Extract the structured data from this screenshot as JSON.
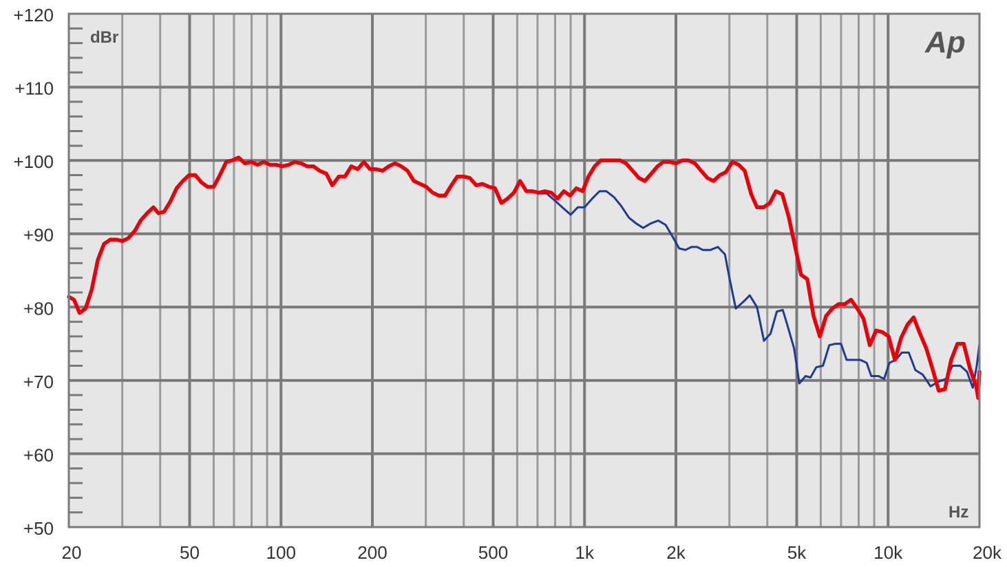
{
  "chart_data": {
    "type": "line",
    "title": "",
    "ylabel": "dBr",
    "xlabel": "Hz",
    "logo": "Ap",
    "x_scale": "log",
    "xlim": [
      20,
      20000
    ],
    "ylim": [
      50,
      120
    ],
    "grid": true,
    "y_ticks": [
      {
        "value": 120,
        "label": "+120"
      },
      {
        "value": 110,
        "label": "+110"
      },
      {
        "value": 100,
        "label": "+100"
      },
      {
        "value": 90,
        "label": "+90"
      },
      {
        "value": 80,
        "label": "+80"
      },
      {
        "value": 70,
        "label": "+70"
      },
      {
        "value": 60,
        "label": "+60"
      },
      {
        "value": 50,
        "label": "+50"
      }
    ],
    "x_ticks": [
      {
        "value": 20,
        "label": "20"
      },
      {
        "value": 50,
        "label": "50"
      },
      {
        "value": 100,
        "label": "100"
      },
      {
        "value": 200,
        "label": "200"
      },
      {
        "value": 500,
        "label": "500"
      },
      {
        "value": 1000,
        "label": "1k"
      },
      {
        "value": 2000,
        "label": "2k"
      },
      {
        "value": 5000,
        "label": "5k"
      },
      {
        "value": 10000,
        "label": "10k"
      },
      {
        "value": 20000,
        "label": "20k"
      }
    ],
    "series": [
      {
        "color": "#1f3a93",
        "points": [
          [
            700,
            95.5
          ],
          [
            750,
            95.5
          ],
          [
            800,
            94.5
          ],
          [
            850,
            93.5
          ],
          [
            900,
            92.6
          ],
          [
            950,
            93.6
          ],
          [
            1000,
            93.6
          ],
          [
            1060,
            94.8
          ],
          [
            1120,
            95.8
          ],
          [
            1180,
            95.8
          ],
          [
            1250,
            95.0
          ],
          [
            1320,
            93.8
          ],
          [
            1400,
            92.2
          ],
          [
            1480,
            91.4
          ],
          [
            1560,
            90.8
          ],
          [
            1650,
            91.4
          ],
          [
            1750,
            91.8
          ],
          [
            1850,
            91.2
          ],
          [
            1950,
            89.6
          ],
          [
            2050,
            88.0
          ],
          [
            2150,
            87.8
          ],
          [
            2250,
            88.2
          ],
          [
            2350,
            88.2
          ],
          [
            2450,
            87.8
          ],
          [
            2600,
            87.8
          ],
          [
            2750,
            88.2
          ],
          [
            2900,
            87.2
          ],
          [
            3000,
            84.0
          ],
          [
            3150,
            79.8
          ],
          [
            3350,
            80.8
          ],
          [
            3500,
            81.6
          ],
          [
            3700,
            80.0
          ],
          [
            3900,
            75.4
          ],
          [
            4100,
            76.4
          ],
          [
            4300,
            79.4
          ],
          [
            4500,
            79.6
          ],
          [
            4700,
            77.0
          ],
          [
            4900,
            74.4
          ],
          [
            5100,
            69.6
          ],
          [
            5350,
            70.6
          ],
          [
            5550,
            70.4
          ],
          [
            5800,
            71.8
          ],
          [
            6100,
            72.0
          ],
          [
            6400,
            74.8
          ],
          [
            6700,
            75.0
          ],
          [
            7000,
            75.0
          ],
          [
            7300,
            72.8
          ],
          [
            7700,
            72.8
          ],
          [
            8100,
            72.8
          ],
          [
            8500,
            72.4
          ],
          [
            8800,
            70.6
          ],
          [
            9300,
            70.6
          ],
          [
            9700,
            70.2
          ],
          [
            10100,
            72.4
          ],
          [
            10600,
            72.8
          ],
          [
            11100,
            73.8
          ],
          [
            11700,
            73.8
          ],
          [
            12300,
            71.4
          ],
          [
            13000,
            70.8
          ],
          [
            13800,
            69.2
          ],
          [
            14600,
            69.8
          ],
          [
            15500,
            70.2
          ],
          [
            16300,
            72.0
          ],
          [
            17300,
            72.0
          ],
          [
            18200,
            71.2
          ],
          [
            19000,
            69.0
          ],
          [
            19600,
            72.0
          ],
          [
            20000,
            75.0
          ]
        ]
      },
      {
        "color": "#e8000b",
        "points": [
          [
            20,
            81.4
          ],
          [
            20.8,
            81.0
          ],
          [
            21.7,
            79.2
          ],
          [
            22.7,
            79.8
          ],
          [
            23.8,
            82.4
          ],
          [
            24.9,
            86.4
          ],
          [
            26.1,
            88.6
          ],
          [
            27.4,
            89.2
          ],
          [
            28.7,
            89.2
          ],
          [
            30,
            89.0
          ],
          [
            31.4,
            89.4
          ],
          [
            33,
            90.4
          ],
          [
            34.5,
            91.8
          ],
          [
            36.2,
            92.8
          ],
          [
            38,
            93.6
          ],
          [
            39.5,
            92.8
          ],
          [
            41.2,
            93.0
          ],
          [
            43.2,
            94.4
          ],
          [
            45.3,
            96.2
          ],
          [
            47.5,
            97.2
          ],
          [
            49.8,
            98.0
          ],
          [
            52.2,
            98.0
          ],
          [
            54.7,
            97.0
          ],
          [
            57.3,
            96.4
          ],
          [
            60,
            96.4
          ],
          [
            62.9,
            98.0
          ],
          [
            66,
            99.8
          ],
          [
            69,
            100.0
          ],
          [
            72.5,
            100.4
          ],
          [
            76,
            99.6
          ],
          [
            79.8,
            99.8
          ],
          [
            83.7,
            99.4
          ],
          [
            87.8,
            99.8
          ],
          [
            92,
            99.4
          ],
          [
            96.5,
            99.4
          ],
          [
            101,
            99.2
          ],
          [
            106,
            99.4
          ],
          [
            111,
            99.8
          ],
          [
            116.5,
            99.6
          ],
          [
            122,
            99.2
          ],
          [
            128,
            99.2
          ],
          [
            134,
            98.6
          ],
          [
            141,
            98.2
          ],
          [
            147.5,
            96.6
          ],
          [
            155,
            97.8
          ],
          [
            162.5,
            97.8
          ],
          [
            170.5,
            99.2
          ],
          [
            179,
            98.8
          ],
          [
            187.5,
            99.8
          ],
          [
            196.5,
            98.8
          ],
          [
            206,
            98.8
          ],
          [
            216,
            98.6
          ],
          [
            226.5,
            99.2
          ],
          [
            237.5,
            99.6
          ],
          [
            249,
            99.2
          ],
          [
            261,
            98.6
          ],
          [
            274,
            97.2
          ],
          [
            287,
            96.8
          ],
          [
            301,
            96.4
          ],
          [
            316,
            95.6
          ],
          [
            331,
            95.2
          ],
          [
            347,
            95.2
          ],
          [
            364,
            96.6
          ],
          [
            381,
            97.8
          ],
          [
            400,
            97.8
          ],
          [
            419,
            97.6
          ],
          [
            440,
            96.6
          ],
          [
            461,
            96.8
          ],
          [
            484,
            96.4
          ],
          [
            507,
            96.2
          ],
          [
            532,
            94.2
          ],
          [
            558,
            94.8
          ],
          [
            585,
            95.6
          ],
          [
            613,
            97.2
          ],
          [
            643,
            95.8
          ],
          [
            674,
            95.8
          ],
          [
            707,
            95.6
          ],
          [
            741,
            95.8
          ],
          [
            777,
            95.6
          ],
          [
            815,
            94.8
          ],
          [
            855,
            95.8
          ],
          [
            896,
            95.2
          ],
          [
            940,
            96.2
          ],
          [
            985,
            95.8
          ],
          [
            1030,
            97.8
          ],
          [
            1080,
            99.2
          ],
          [
            1130,
            100.0
          ],
          [
            1190,
            100.0
          ],
          [
            1250,
            100.0
          ],
          [
            1310,
            100.0
          ],
          [
            1370,
            99.6
          ],
          [
            1440,
            98.6
          ],
          [
            1510,
            97.6
          ],
          [
            1580,
            97.2
          ],
          [
            1660,
            98.2
          ],
          [
            1740,
            99.2
          ],
          [
            1820,
            99.8
          ],
          [
            1910,
            99.8
          ],
          [
            2000,
            99.6
          ],
          [
            2100,
            100.0
          ],
          [
            2200,
            100.0
          ],
          [
            2310,
            99.6
          ],
          [
            2420,
            98.6
          ],
          [
            2540,
            97.6
          ],
          [
            2660,
            97.2
          ],
          [
            2790,
            98.0
          ],
          [
            2920,
            98.4
          ],
          [
            3070,
            99.8
          ],
          [
            3220,
            99.4
          ],
          [
            3370,
            98.6
          ],
          [
            3540,
            95.4
          ],
          [
            3700,
            93.6
          ],
          [
            3890,
            93.6
          ],
          [
            4080,
            94.2
          ],
          [
            4270,
            95.8
          ],
          [
            4480,
            95.4
          ],
          [
            4700,
            92.4
          ],
          [
            4930,
            88.4
          ],
          [
            5170,
            84.4
          ],
          [
            5420,
            83.8
          ],
          [
            5680,
            78.8
          ],
          [
            5960,
            76.0
          ],
          [
            6250,
            78.8
          ],
          [
            6550,
            79.8
          ],
          [
            6870,
            80.4
          ],
          [
            7200,
            80.4
          ],
          [
            7550,
            81.0
          ],
          [
            7920,
            79.8
          ],
          [
            8300,
            78.4
          ],
          [
            8700,
            74.8
          ],
          [
            9130,
            76.8
          ],
          [
            9570,
            76.6
          ],
          [
            10040,
            76.0
          ],
          [
            10530,
            72.8
          ],
          [
            11040,
            75.8
          ],
          [
            11580,
            77.6
          ],
          [
            12140,
            78.6
          ],
          [
            12730,
            76.4
          ],
          [
            13350,
            74.4
          ],
          [
            14000,
            71.6
          ],
          [
            14680,
            68.6
          ],
          [
            15390,
            68.8
          ],
          [
            16140,
            72.8
          ],
          [
            16920,
            75.0
          ],
          [
            17750,
            75.0
          ],
          [
            18610,
            71.6
          ],
          [
            19510,
            69.2
          ],
          [
            19800,
            67.6
          ],
          [
            20000,
            71.2
          ]
        ]
      }
    ]
  }
}
